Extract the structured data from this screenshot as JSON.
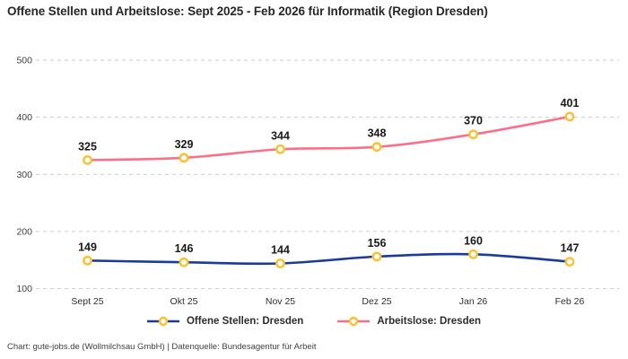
{
  "title": "Offene Stellen und Arbeitslose: Sept 2025 - Feb 2026 für Informatik (Region Dresden)",
  "footer": "Chart: gute-jobs.de (Wollmilchsau GmbH) | Datenquelle: Bundesagentur für Arbeit",
  "colors": {
    "offene_stellen": "#1e3a99",
    "arbeitslose": "#f9708a",
    "marker_ring": "#fcc02d",
    "marker_fill": "#ffffff",
    "gridline": "#cbcbcb",
    "axis_text": "#3e3e3e",
    "value_label": "#191919"
  },
  "chart_data": {
    "type": "line",
    "title": "Offene Stellen und Arbeitslose: Sept 2025 - Feb 2026 für Informatik (Region Dresden)",
    "categories": [
      "Sept 25",
      "Okt 25",
      "Nov 25",
      "Dez 25",
      "Jan 26",
      "Feb 26"
    ],
    "series": [
      {
        "name": "Offene Stellen: Dresden",
        "color_key": "offene_stellen",
        "values": [
          149,
          146,
          144,
          156,
          160,
          147
        ]
      },
      {
        "name": "Arbeitslose: Dresden",
        "color_key": "arbeitslose",
        "values": [
          325,
          329,
          344,
          348,
          370,
          401
        ]
      }
    ],
    "ylim": [
      100,
      500
    ],
    "yticks": [
      100,
      200,
      300,
      400,
      500
    ],
    "grid": true,
    "grid_style": "dashed",
    "point_labels": true,
    "legend_position": "bottom",
    "xlabel": "",
    "ylabel": ""
  }
}
